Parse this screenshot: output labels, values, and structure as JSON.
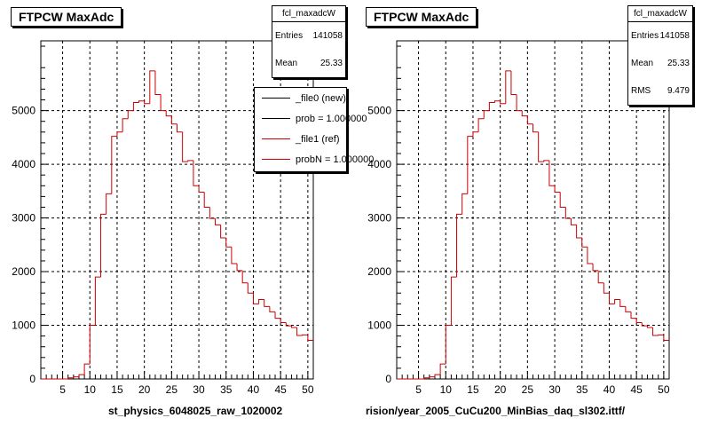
{
  "colors": {
    "hist": "#cc0000",
    "ref_line": "#000000",
    "file1_line": "#cc0000"
  },
  "panels": [
    {
      "title": "FTPCW MaxAdc",
      "stats": {
        "name": "fcl_maxadcW",
        "rows": [
          {
            "label": "Entries",
            "value": "141058"
          },
          {
            "label": "Mean",
            "value": "25.33"
          }
        ]
      },
      "legend": [
        {
          "label": "_file0 (new)",
          "color": "#000000"
        },
        {
          "label": "prob = 1.000000",
          "color": "#000000"
        },
        {
          "label": "_file1 (ref)",
          "color": "#cc0000"
        },
        {
          "label": "probN = 1.000000",
          "color": "#cc0000"
        }
      ],
      "xtitle": "st_physics_6048025_raw_1020002"
    },
    {
      "title": "FTPCW MaxAdc",
      "stats": {
        "name": "fcl_maxadcW",
        "rows": [
          {
            "label": "Entries",
            "value": "141058"
          },
          {
            "label": "Mean",
            "value": "25.33"
          },
          {
            "label": "RMS",
            "value": "9.479"
          }
        ]
      },
      "legend": [],
      "xtitle": "rision/year_2005_CuCu200_MinBias_daq_sl302.ittf/"
    }
  ],
  "chart_data": [
    {
      "type": "bar",
      "title": "FTPCW MaxAdc",
      "xlabel": "st_physics_6048025_raw_1020002",
      "ylabel": "",
      "xlim": [
        1,
        51
      ],
      "ylim": [
        0,
        6300
      ],
      "xticks": [
        5,
        10,
        15,
        20,
        25,
        30,
        35,
        40,
        45,
        50
      ],
      "yticks": [
        0,
        1000,
        2000,
        3000,
        4000,
        5000
      ],
      "grid": true,
      "legend_position": "top-right",
      "bin_width": 1,
      "bin_edges_start": 1,
      "values": [
        0,
        0,
        0,
        0,
        0,
        20,
        40,
        80,
        280,
        1000,
        1900,
        3070,
        3450,
        4520,
        4600,
        4850,
        5000,
        5150,
        5180,
        5130,
        5740,
        5300,
        5000,
        4900,
        4750,
        4600,
        4050,
        4070,
        3600,
        3480,
        3200,
        2990,
        2870,
        2630,
        2460,
        2150,
        2020,
        1790,
        1600,
        1400,
        1480,
        1350,
        1250,
        1130,
        1050,
        990,
        960,
        810,
        820,
        720
      ]
    },
    {
      "type": "bar",
      "title": "FTPCW MaxAdc",
      "xlabel": "rision/year_2005_CuCu200_MinBias_daq_sl302.ittf/",
      "ylabel": "",
      "xlim": [
        1,
        51
      ],
      "ylim": [
        0,
        6300
      ],
      "xticks": [
        5,
        10,
        15,
        20,
        25,
        30,
        35,
        40,
        45,
        50
      ],
      "yticks": [
        0,
        1000,
        2000,
        3000,
        4000,
        5000
      ],
      "grid": true,
      "bin_width": 1,
      "bin_edges_start": 1,
      "values": [
        0,
        0,
        0,
        0,
        0,
        20,
        40,
        80,
        280,
        1000,
        1900,
        3070,
        3450,
        4520,
        4600,
        4850,
        5000,
        5150,
        5180,
        5130,
        5740,
        5300,
        5000,
        4900,
        4750,
        4600,
        4050,
        4070,
        3600,
        3480,
        3200,
        2990,
        2870,
        2630,
        2460,
        2150,
        2020,
        1790,
        1600,
        1400,
        1480,
        1350,
        1250,
        1130,
        1050,
        990,
        960,
        810,
        820,
        720
      ]
    }
  ]
}
